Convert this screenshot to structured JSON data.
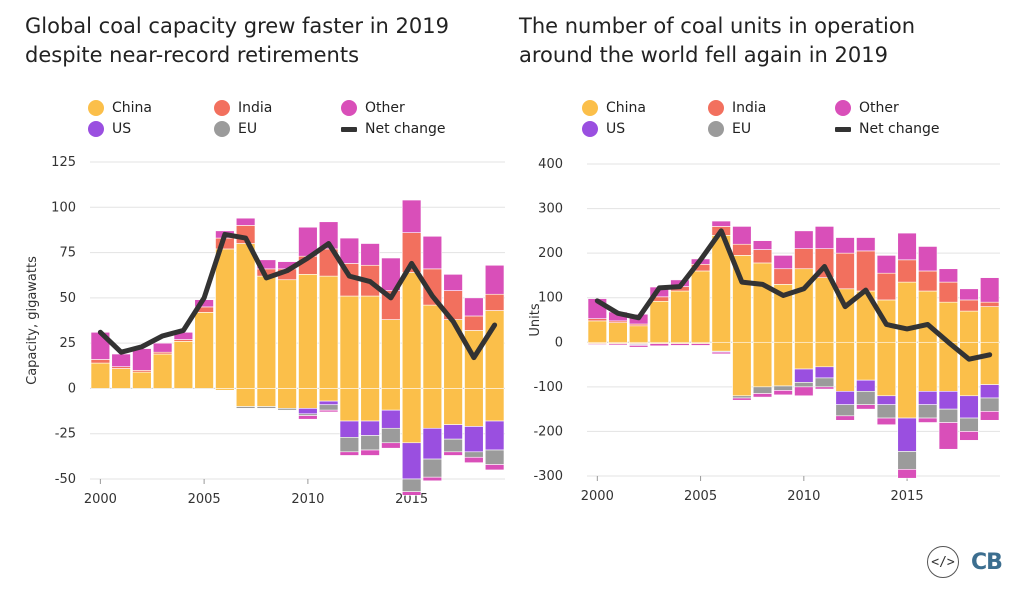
{
  "colors": {
    "China": "#fbbf4a",
    "India": "#f2705e",
    "Other": "#d94fb9",
    "US": "#9a4fe0",
    "EU": "#9b9b9b",
    "Net change": "#333333"
  },
  "legend": {
    "items": [
      {
        "name": "China",
        "color": "#fbbf4a"
      },
      {
        "name": "India",
        "color": "#f2705e"
      },
      {
        "name": "Other",
        "color": "#d94fb9"
      },
      {
        "name": "US",
        "color": "#9a4fe0"
      },
      {
        "name": "EU",
        "color": "#9b9b9b"
      },
      {
        "name": "Net change",
        "color": "#333333"
      }
    ]
  },
  "logo": {
    "code_icon": "code-icon",
    "text": "CB"
  },
  "chart_data": [
    {
      "type": "bar",
      "stacked": true,
      "title": "Global coal capacity grew faster in 2019 despite near-record retirements",
      "title_lines": [
        "Global coal capacity grew faster in 2019",
        "despite near-record retirements"
      ],
      "xlabel": "",
      "ylabel": "Capacity, gigawatts",
      "ylim": [
        -50,
        125
      ],
      "yticks": [
        -50,
        -25,
        0,
        25,
        50,
        75,
        100,
        125
      ],
      "xticks": [
        2000,
        2005,
        2010,
        2015
      ],
      "x": [
        2000,
        2001,
        2002,
        2003,
        2004,
        2005,
        2006,
        2007,
        2008,
        2009,
        2010,
        2011,
        2012,
        2013,
        2014,
        2015,
        2016,
        2017,
        2018,
        2019
      ],
      "grid": true,
      "legend": "top",
      "series": [
        {
          "name": "China",
          "values": [
            14,
            11,
            9,
            19,
            26,
            42,
            77,
            80,
            62,
            60,
            63,
            62,
            51,
            51,
            38,
            64,
            46,
            38,
            32,
            43
          ]
        },
        {
          "name": "India",
          "values": [
            2,
            1,
            1,
            1,
            1,
            3,
            6,
            10,
            4,
            6,
            10,
            15,
            18,
            17,
            16,
            22,
            20,
            16,
            8,
            9
          ]
        },
        {
          "name": "Other",
          "values": [
            15,
            7,
            12,
            5,
            4,
            4,
            4,
            4,
            5,
            4,
            16,
            15,
            14,
            12,
            18,
            18,
            18,
            9,
            10,
            16
          ]
        },
        {
          "name": "China",
          "values": [
            0,
            0,
            0,
            0,
            0,
            0,
            -1,
            -10,
            -10,
            -11,
            -11,
            -7,
            -18,
            -18,
            -12,
            -30,
            -22,
            -20,
            -21,
            -18
          ]
        },
        {
          "name": "US",
          "values": [
            0,
            0,
            0,
            0,
            0,
            0,
            0,
            0,
            0,
            0,
            -3,
            -2,
            -9,
            -8,
            -10,
            -20,
            -17,
            -8,
            -14,
            -16
          ]
        },
        {
          "name": "EU",
          "values": [
            0,
            0,
            0,
            0,
            0,
            0,
            0,
            -1,
            -1,
            -1,
            -1,
            -3,
            -8,
            -8,
            -8,
            -7,
            -10,
            -7,
            -3,
            -8
          ]
        },
        {
          "name": "Other",
          "values": [
            0,
            0,
            0,
            0,
            0,
            0,
            0,
            0,
            0,
            0,
            -2,
            -1,
            -2,
            -3,
            -3,
            -2,
            -2,
            -2,
            -3,
            -3
          ]
        },
        {
          "name": "Net change",
          "type": "line",
          "values": [
            31,
            20,
            23,
            29,
            32,
            50,
            85,
            83,
            61,
            65,
            72,
            80,
            62,
            59,
            50,
            69,
            51,
            37,
            17,
            35
          ]
        }
      ]
    },
    {
      "type": "bar",
      "stacked": true,
      "title": "The number of coal units in operation around the world fell again in 2019",
      "title_lines": [
        "The number of coal units in operation",
        "around the world fell again in 2019"
      ],
      "xlabel": "",
      "ylabel": "Units",
      "ylim": [
        -300,
        400
      ],
      "yticks": [
        -300,
        -200,
        -100,
        0,
        100,
        200,
        300,
        400
      ],
      "xticks": [
        2000,
        2005,
        2010,
        2015
      ],
      "x": [
        2000,
        2001,
        2002,
        2003,
        2004,
        2005,
        2006,
        2007,
        2008,
        2009,
        2010,
        2011,
        2012,
        2013,
        2014,
        2015,
        2016,
        2017,
        2018,
        2019
      ],
      "grid": true,
      "legend": "top",
      "series": [
        {
          "name": "China",
          "values": [
            48,
            44,
            37,
            92,
            115,
            160,
            240,
            195,
            178,
            130,
            165,
            145,
            120,
            115,
            95,
            135,
            115,
            90,
            70,
            80
          ]
        },
        {
          "name": "India",
          "values": [
            5,
            4,
            4,
            10,
            10,
            15,
            20,
            25,
            30,
            35,
            45,
            65,
            80,
            90,
            60,
            50,
            45,
            45,
            25,
            10
          ]
        },
        {
          "name": "Other",
          "values": [
            45,
            20,
            22,
            22,
            15,
            12,
            12,
            40,
            20,
            30,
            40,
            50,
            35,
            30,
            40,
            60,
            55,
            30,
            25,
            55
          ]
        },
        {
          "name": "China",
          "values": [
            -3,
            -3,
            -3,
            -3,
            -3,
            -3,
            -20,
            -120,
            -100,
            -98,
            -60,
            -55,
            -110,
            -85,
            -120,
            -170,
            -110,
            -110,
            -120,
            -95
          ]
        },
        {
          "name": "US",
          "values": [
            0,
            0,
            -2,
            0,
            0,
            0,
            0,
            0,
            0,
            0,
            -30,
            -25,
            -30,
            -25,
            -20,
            -75,
            -30,
            -40,
            -50,
            -30
          ]
        },
        {
          "name": "EU",
          "values": [
            0,
            0,
            -2,
            0,
            0,
            0,
            -2,
            -5,
            -15,
            -10,
            -10,
            -20,
            -25,
            -30,
            -30,
            -40,
            -30,
            -30,
            -30,
            -30
          ]
        },
        {
          "name": "Other",
          "values": [
            -2,
            -3,
            -4,
            -5,
            -4,
            -4,
            -4,
            -5,
            -8,
            -10,
            -20,
            -5,
            -10,
            -10,
            -15,
            -20,
            -10,
            -60,
            -20,
            -20
          ]
        },
        {
          "name": "Net change",
          "type": "line",
          "values": [
            93,
            65,
            55,
            122,
            125,
            185,
            250,
            135,
            130,
            105,
            120,
            170,
            80,
            117,
            40,
            30,
            40,
            0,
            -38,
            -28
          ]
        }
      ]
    }
  ]
}
